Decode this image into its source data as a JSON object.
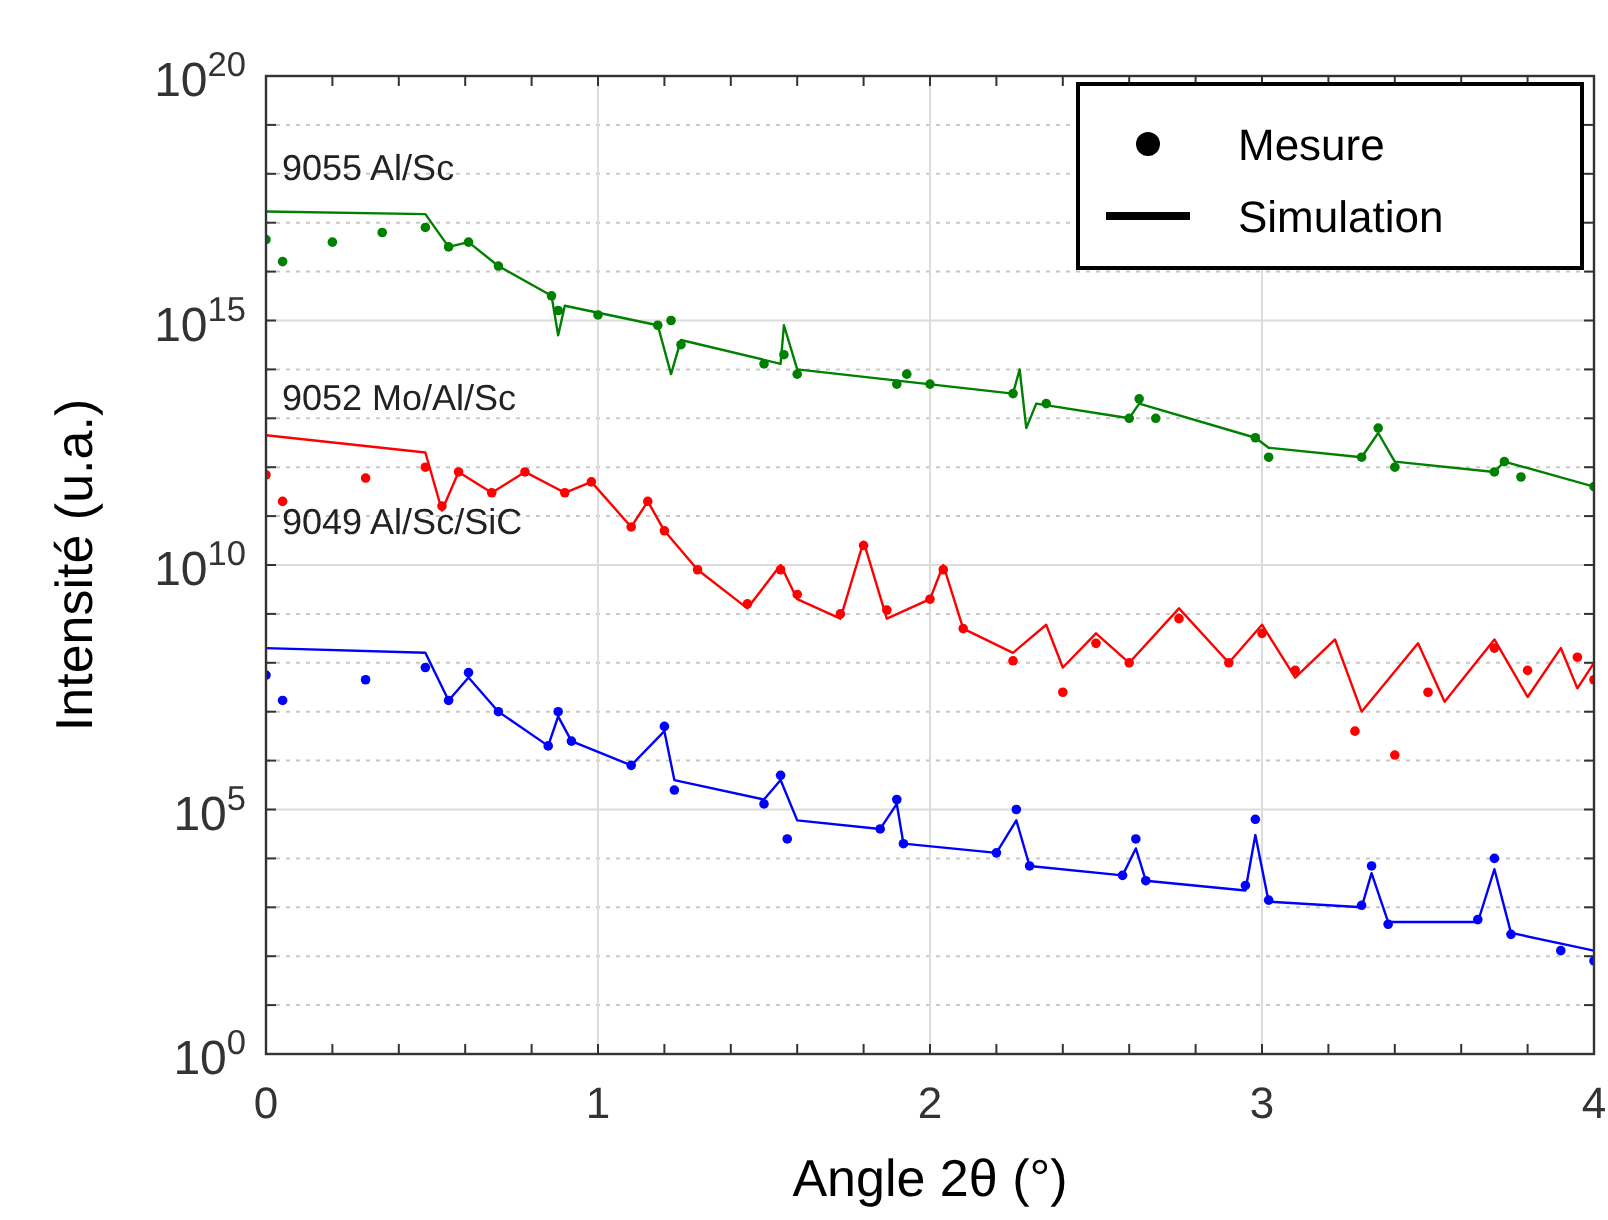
{
  "chart_data": {
    "type": "scatter",
    "xlabel": "Angle 2θ (°)",
    "ylabel": "Intensité (u.a.)",
    "log": "y",
    "grid": true,
    "xlim": [
      0,
      4
    ],
    "xticks": [
      0,
      {
        "value": 0.2,
        "label": null
      },
      {
        "value": 0.4,
        "label": null
      },
      {
        "value": 0.6,
        "label": null
      },
      {
        "value": 0.8,
        "label": null
      },
      1,
      {
        "value": 1.2,
        "label": null
      },
      {
        "value": 1.4,
        "label": null
      },
      {
        "value": 1.6,
        "label": null
      },
      {
        "value": 1.8,
        "label": null
      },
      2,
      {
        "value": 2.2,
        "label": null
      },
      {
        "value": 2.4,
        "label": null
      },
      {
        "value": 2.6,
        "label": null
      },
      {
        "value": 2.8,
        "label": null
      },
      3,
      {
        "value": 3.2,
        "label": null
      },
      {
        "value": 3.4,
        "label": null
      },
      {
        "value": 3.6,
        "label": null
      },
      {
        "value": 3.8,
        "label": null
      },
      4
    ],
    "ylim": [
      1,
      1e+20
    ],
    "yticks": [
      {
        "value": 1,
        "label": "10$^{0}$"
      },
      {
        "value": 10.0,
        "label": null
      },
      {
        "value": 100.0,
        "label": null
      },
      {
        "value": 1000.0,
        "label": null
      },
      {
        "value": 10000.0,
        "label": null
      },
      {
        "value": 100000.0,
        "label": "10$^{5}$"
      },
      {
        "value": 1000000.0,
        "label": null
      },
      {
        "value": 10000000.0,
        "label": null
      },
      {
        "value": 100000000.0,
        "label": null
      },
      {
        "value": 1000000000.0,
        "label": null
      },
      {
        "value": 10000000000.0,
        "label": "10$^{10}$"
      },
      {
        "value": 100000000000.0,
        "label": null
      },
      {
        "value": 1000000000000.0,
        "label": null
      },
      {
        "value": 10000000000000.0,
        "label": null
      },
      {
        "value": 100000000000000.0,
        "label": null
      },
      {
        "value": 1000000000000000.0,
        "label": "10$^{15}$"
      },
      {
        "value": 1e+16,
        "label": null
      },
      {
        "value": 1e+17,
        "label": null
      },
      {
        "value": 1e+18,
        "label": null
      },
      {
        "value": 1e+19,
        "label": null
      },
      {
        "value": 1e+20,
        "label": "10$^{20}$"
      }
    ],
    "annotations": [
      "Mesure",
      "Simulation",
      "9055 Al/Sc",
      "9052 Mo/Al/Sc",
      "9049 Al/Sc/SiC"
    ],
    "series": [
      {
        "type": "line",
        "color": "#008000",
        "x": [
          0,
          0.48,
          0.55,
          0.61,
          0.7,
          0.86,
          0.88,
          0.9,
          1.18,
          1.22,
          1.25,
          1.55,
          1.56,
          1.6,
          2.25,
          2.27,
          2.29,
          2.32,
          2.6,
          2.63,
          2.98,
          3.02,
          3.3,
          3.35,
          3.4,
          3.7,
          3.73,
          4
        ],
        "values": [
          1.7e+17,
          1.5e+17,
          3.2e+16,
          4e+16,
          1.3e+16,
          3200000000000000.0,
          500000000000000.0,
          2000000000000000.0,
          800000000000000.0,
          80000000000000.0,
          400000000000000.0,
          130000000000000.0,
          800000000000000.0,
          100000000000000.0,
          32000000000000.0,
          100000000000000.0,
          6300000000000.0,
          20000000000000.0,
          10000000000000.0,
          20000000000000.0,
          4000000000000.0,
          2500000000000.0,
          1600000000000.0,
          5000000000000.0,
          1300000000000.0,
          800000000000.0,
          1300000000000.0,
          400000000000.0
        ]
      },
      {
        "marker": "circle",
        "color": "#008000",
        "x": [
          0,
          0.05,
          0.2,
          0.35,
          0.48,
          0.55,
          0.61,
          0.7,
          0.86,
          0.88,
          1.0,
          1.18,
          1.22,
          1.25,
          1.5,
          1.56,
          1.6,
          1.9,
          1.93,
          2.0,
          2.25,
          2.35,
          2.6,
          2.63,
          2.68,
          2.98,
          3.02,
          3.3,
          3.35,
          3.4,
          3.7,
          3.73,
          3.78,
          4
        ],
        "values": [
          4.5e+16,
          1.6e+16,
          4e+16,
          6.3e+16,
          8e+16,
          3.2e+16,
          4e+16,
          1.3e+16,
          3200000000000000.0,
          1600000000000000.0,
          1300000000000000.0,
          800000000000000.0,
          1000000000000000.0,
          320000000000000.0,
          130000000000000.0,
          200000000000000.0,
          80000000000000.0,
          50000000000000.0,
          80000000000000.0,
          50000000000000.0,
          32000000000000.0,
          20000000000000.0,
          10000000000000.0,
          25000000000000.0,
          10000000000000.0,
          4000000000000.0,
          1600000000000.0,
          1600000000000.0,
          6300000000000.0,
          1000000000000.0,
          800000000000.0,
          1300000000000.0,
          630000000000.0,
          400000000000.0
        ]
      },
      {
        "type": "line",
        "color": "#ff0000",
        "x": [
          0,
          0.48,
          0.53,
          0.58,
          0.68,
          0.78,
          0.9,
          0.98,
          1.1,
          1.15,
          1.2,
          1.3,
          1.45,
          1.55,
          1.6,
          1.73,
          1.8,
          1.87,
          2.0,
          2.04,
          2.1,
          2.25,
          2.35,
          2.4,
          2.5,
          2.6,
          2.75,
          2.9,
          3.0,
          3.1,
          3.22,
          3.3,
          3.47,
          3.55,
          3.7,
          3.8,
          3.9,
          3.95,
          4
        ],
        "values": [
          4500000000000.0,
          2000000000000.0,
          130000000000.0,
          800000000000.0,
          300000000000.0,
          800000000000.0,
          300000000000.0,
          500000000000.0,
          60000000000.0,
          200000000000.0,
          50000000000.0,
          8000000000.0,
          1300000000.0,
          10000000000.0,
          2000000000.0,
          800000000.0,
          30000000000.0,
          800000000.0,
          2000000000.0,
          10000000000.0,
          500000000.0,
          160000000.0,
          600000000.0,
          80000000.0,
          400000000.0,
          100000000.0,
          1300000000.0,
          100000000.0,
          600000000.0,
          50000000.0,
          300000000.0,
          10000000.0,
          250000000.0,
          16000000.0,
          300000000.0,
          20000000.0,
          200000000.0,
          30000000.0,
          100000000.0
        ]
      },
      {
        "marker": "circle",
        "color": "#ff0000",
        "x": [
          0,
          0.05,
          0.3,
          0.48,
          0.53,
          0.58,
          0.68,
          0.78,
          0.9,
          0.98,
          1.1,
          1.15,
          1.2,
          1.3,
          1.45,
          1.55,
          1.6,
          1.73,
          1.8,
          1.87,
          2.0,
          2.04,
          2.1,
          2.25,
          2.4,
          2.5,
          2.6,
          2.75,
          2.9,
          3.0,
          3.1,
          3.28,
          3.4,
          3.5,
          3.7,
          3.8,
          3.95,
          4
        ],
        "values": [
          700000000000.0,
          200000000000.0,
          600000000000.0,
          1000000000000.0,
          160000000000.0,
          800000000000.0,
          300000000000.0,
          800000000000.0,
          300000000000.0,
          500000000000.0,
          60000000000.0,
          200000000000.0,
          50000000000.0,
          8000000000.0,
          1600000000.0,
          8000000000.0,
          2500000000.0,
          1000000000.0,
          25000000000.0,
          1200000000.0,
          2000000000.0,
          8000000000.0,
          500000000.0,
          110000000.0,
          25000000.0,
          250000000.0,
          100000000.0,
          800000000.0,
          100000000.0,
          400000000.0,
          70000000.0,
          4000000.0,
          1300000.0,
          25000000.0,
          200000000.0,
          70000000.0,
          130000000.0,
          45000000.0
        ]
      },
      {
        "type": "line",
        "color": "#0000ff",
        "x": [
          0,
          0.48,
          0.55,
          0.61,
          0.7,
          0.85,
          0.88,
          0.92,
          1.1,
          1.2,
          1.23,
          1.5,
          1.55,
          1.6,
          1.85,
          1.9,
          1.92,
          2.2,
          2.26,
          2.3,
          2.58,
          2.62,
          2.65,
          2.95,
          2.98,
          3.02,
          3.3,
          3.33,
          3.38,
          3.65,
          3.7,
          3.75,
          4
        ],
        "values": [
          200000000.0,
          160000000.0,
          17000000.0,
          50000000.0,
          10000000.0,
          2000000.0,
          8000000.0,
          2500000.0,
          800000.0,
          4000000.0,
          400000.0,
          160000.0,
          400000.0,
          60000.0,
          40000.0,
          130000.0,
          20000.0,
          13000.0,
          60000.0,
          7000.0,
          4500.0,
          16000.0,
          3500.0,
          2200.0,
          30000.0,
          1300.0,
          1000.0,
          5000.0,
          500.0,
          500.0,
          6000.0,
          300.0,
          130.0
        ]
      },
      {
        "marker": "circle",
        "color": "#0000ff",
        "x": [
          0,
          0.05,
          0.3,
          0.48,
          0.55,
          0.61,
          0.7,
          0.85,
          0.88,
          0.92,
          1.1,
          1.2,
          1.23,
          1.5,
          1.55,
          1.57,
          1.85,
          1.9,
          1.92,
          2.2,
          2.26,
          2.3,
          2.58,
          2.62,
          2.65,
          2.95,
          2.98,
          3.02,
          3.3,
          3.33,
          3.38,
          3.65,
          3.7,
          3.75,
          3.9,
          4
        ],
        "values": [
          56000000.0,
          17000000.0,
          45000000.0,
          80000000.0,
          17000000.0,
          63000000.0,
          10000000.0,
          2000000.0,
          10000000.0,
          2500000.0,
          800000.0,
          5000000.0,
          250000.0,
          130000.0,
          500000.0,
          25000.0,
          40000.0,
          160000.0,
          20000.0,
          13000.0,
          100000.0,
          7000.0,
          4500.0,
          25000.0,
          3500.0,
          2800.0,
          63000.0,
          1400.0,
          1100.0,
          7000.0,
          450,
          560,
          10000.0,
          280,
          130,
          80
        ]
      }
    ]
  }
}
